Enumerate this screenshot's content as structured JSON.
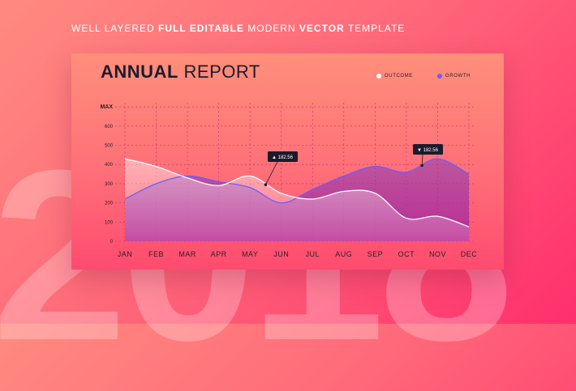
{
  "background_year": "2018",
  "headline": {
    "p1": "WELL LAYERED ",
    "p2": "FULL EDITABLE",
    "p3": " MODERN ",
    "p4": "VECTOR",
    "p5": " TEMPLATE"
  },
  "title": {
    "bold": "ANNUAL",
    "light": " REPORT"
  },
  "legend": [
    {
      "label": "OUTCOME",
      "color": "#ffffff"
    },
    {
      "label": "GROWTH",
      "color": "#6d5cff"
    }
  ],
  "chart_data": {
    "type": "area",
    "categories": [
      "JAN",
      "FEB",
      "MAR",
      "APR",
      "MAY",
      "JUN",
      "JUL",
      "AUG",
      "SEP",
      "OCT",
      "NOV",
      "DEC"
    ],
    "yticks": [
      "0",
      "100",
      "200",
      "300",
      "400",
      "500",
      "600",
      "MAX"
    ],
    "ylim": [
      0,
      700
    ],
    "series": [
      {
        "name": "OUTCOME",
        "color": "#ffffff",
        "values": [
          430,
          390,
          330,
          290,
          340,
          250,
          220,
          260,
          250,
          120,
          130,
          75
        ]
      },
      {
        "name": "GROWTH",
        "color": "#6d5cff",
        "values": [
          220,
          300,
          340,
          310,
          280,
          200,
          270,
          340,
          390,
          360,
          430,
          350
        ]
      }
    ],
    "callouts": [
      {
        "label": "182.56",
        "marker": "▲"
      },
      {
        "label": "182.56",
        "marker": "▼"
      }
    ]
  }
}
